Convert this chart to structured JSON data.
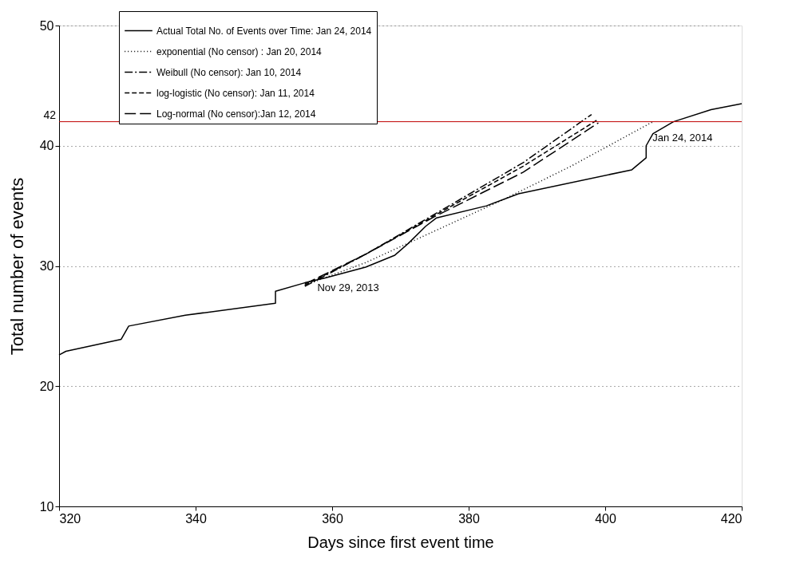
{
  "chart_data": {
    "type": "line",
    "xlabel": "Days since first event time",
    "ylabel": "Total number of events",
    "xlim": [
      320,
      420
    ],
    "xticks": [
      320,
      340,
      360,
      380,
      400,
      420
    ],
    "ylim": [
      10,
      50
    ],
    "yticks": [
      10,
      20,
      30,
      40,
      50
    ],
    "grid": "y",
    "legend": "top",
    "marker": "none",
    "series": [
      {
        "name": "Actual Total No. of Events over Time: Jan 24, 2014",
        "color": "#000000",
        "line_style": "solid",
        "x": [
          320,
          321,
          329.1,
          330.2,
          338.5,
          351.7,
          351.7,
          356,
          359,
          364.9,
          369.2,
          371.2,
          373.7,
          375.3,
          382.6,
          387.3,
          403.9,
          406,
          406,
          407,
          410,
          415.5,
          420
        ],
        "values": [
          22.6,
          22.9,
          23.9,
          25.0,
          25.9,
          26.9,
          27.9,
          28.6,
          29.0,
          29.9,
          30.9,
          31.9,
          33.3,
          34.0,
          35.0,
          36.0,
          38.0,
          39.0,
          40.0,
          41.0,
          42.0,
          43.0,
          43.5
        ]
      },
      {
        "name": "exponential (No censor) : Jan 20, 2014",
        "color": "#000000",
        "line_style": "dotted",
        "x": [
          356,
          365,
          375,
          385,
          395,
          407
        ],
        "values": [
          28.4,
          30.3,
          32.9,
          35.5,
          38.3,
          42.0
        ]
      },
      {
        "name": "Weibull (No censor): Jan 10, 2014",
        "color": "#000000",
        "line_style": "dashed",
        "x": [
          356,
          365,
          375,
          388,
          398
        ],
        "values": [
          28.3,
          31.0,
          34.3,
          38.6,
          42.6
        ]
      },
      {
        "name": "log-logistic (No censor): Jan 11, 2014",
        "color": "#000000",
        "line_style": "dashed",
        "x": [
          356,
          365,
          375,
          388,
          399
        ],
        "values": [
          28.4,
          31.0,
          34.2,
          38.3,
          42.2
        ]
      },
      {
        "name": "Log-normal (No censor):Jan 12, 2014",
        "color": "#000000",
        "line_style": "dashed",
        "x": [
          356,
          365,
          375,
          388,
          399
        ],
        "values": [
          28.5,
          31.0,
          34.1,
          37.8,
          41.9
        ]
      }
    ],
    "ref_lines": [
      {
        "axis": "y",
        "value": 42,
        "label": "42",
        "color": "#c00000"
      }
    ],
    "annotations": [
      {
        "text": "Nov 29, 2013",
        "x": 357.6,
        "y": 29.0
      },
      {
        "text": "Jan 24, 2014",
        "x": 406,
        "y": 40.0
      }
    ]
  }
}
